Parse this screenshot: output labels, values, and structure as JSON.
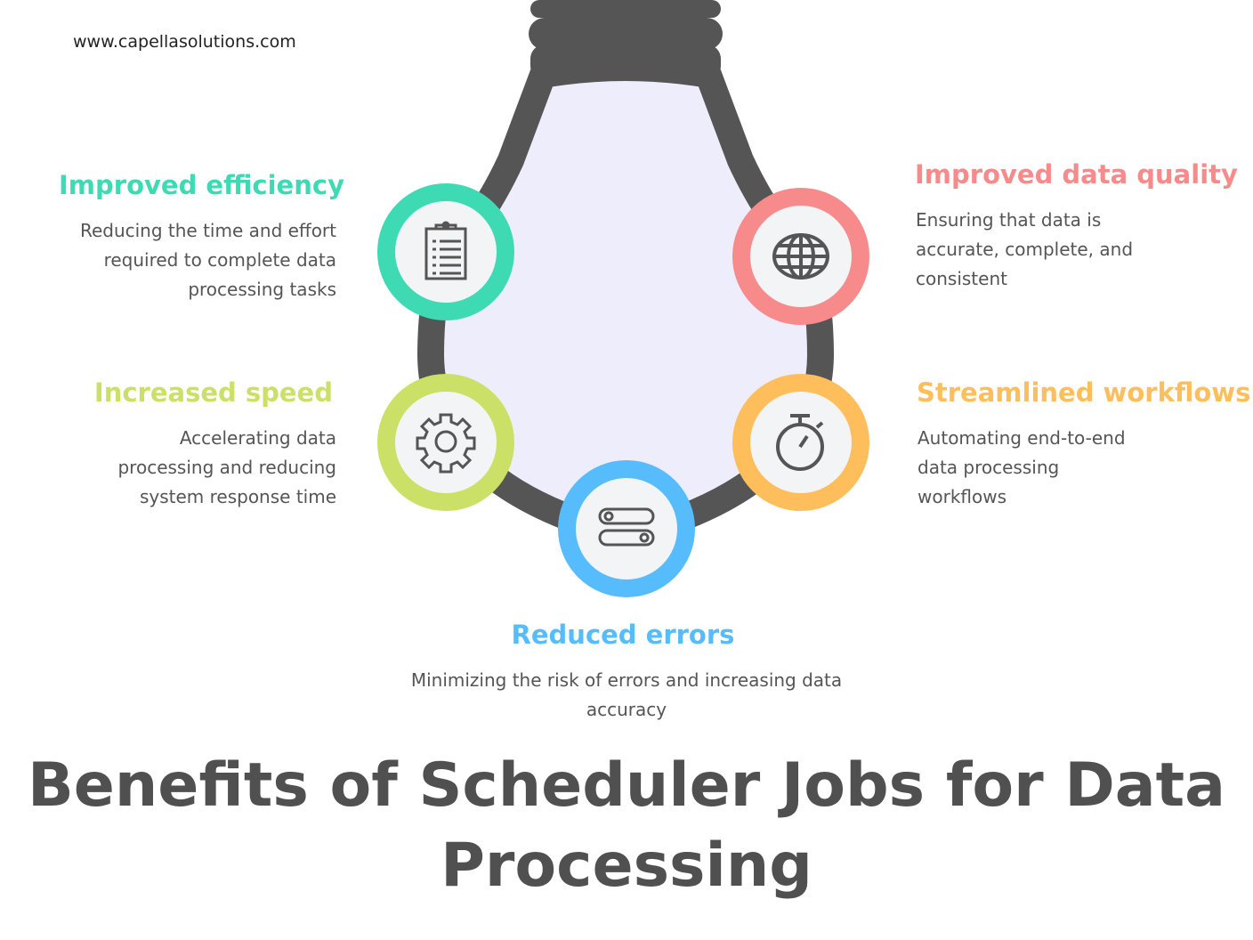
{
  "site_url": "www.capellasolutions.com",
  "title": "Benefits of Scheduler Jobs for Data Processing",
  "colors": {
    "outline": "#555555",
    "bulb_fill": "#EEEDFC",
    "inner": "#F3F4F6",
    "efficiency": "#3DDAB4",
    "quality": "#F78A8A",
    "speed": "#CBE066",
    "workflows": "#FFBE5C",
    "errors": "#56BCFB"
  },
  "benefits": [
    {
      "heading": "Improved efficiency",
      "text": "Reducing the time and effort required to complete data processing tasks",
      "icon": "clipboard-icon"
    },
    {
      "heading": "Improved data quality",
      "text": "Ensuring that data is accurate, complete, and consistent",
      "icon": "globe-icon"
    },
    {
      "heading": "Increased speed",
      "text": "Accelerating data processing and reducing system response time",
      "icon": "gear-icon"
    },
    {
      "heading": "Streamlined workflows",
      "text": "Automating end-to-end data processing workflows",
      "icon": "stopwatch-icon"
    },
    {
      "heading": "Reduced errors",
      "text": "Minimizing the risk of errors and increasing data accuracy",
      "icon": "toggle-switches-icon"
    }
  ]
}
